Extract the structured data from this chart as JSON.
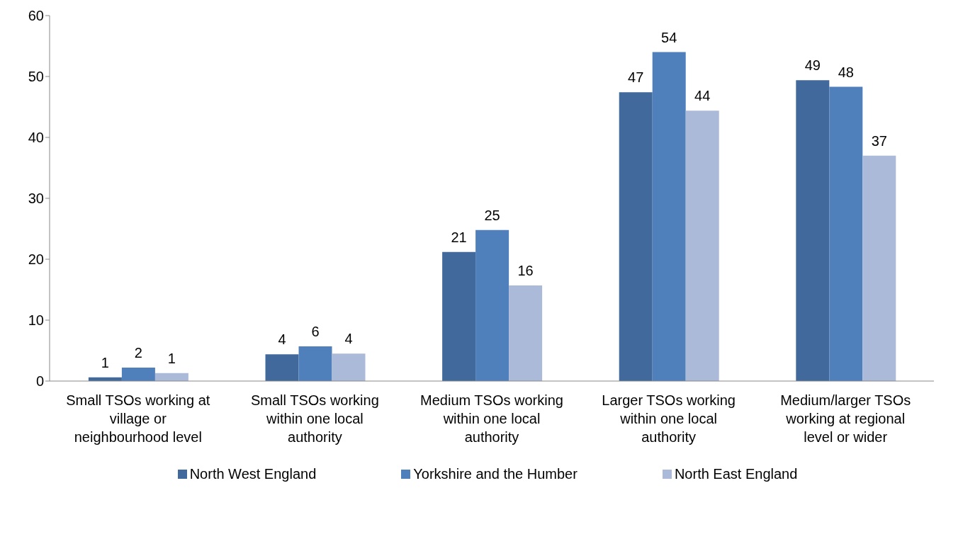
{
  "chart_data": {
    "type": "bar",
    "categories": [
      "Small TSOs working at village or neighbourhood level",
      "Small TSOs working within one local authority",
      "Medium TSOs working within one local authority",
      "Larger TSOs working within one local authority",
      "Medium/larger TSOs working at regional level or wider"
    ],
    "series": [
      {
        "name": "North West England",
        "color": "#41699b",
        "values": [
          0.6,
          4.4,
          21.2,
          47.4,
          49.4
        ],
        "value_labels": [
          "1",
          "4",
          "21",
          "47",
          "49"
        ]
      },
      {
        "name": "Yorkshire and the Humber",
        "color": "#4f80bc",
        "values": [
          2.2,
          5.7,
          24.8,
          54,
          48.3
        ],
        "value_labels": [
          "2",
          "6",
          "25",
          "54",
          "48"
        ]
      },
      {
        "name": "North East England",
        "color": "#abbad8",
        "values": [
          1.3,
          4.5,
          15.7,
          44.4,
          37
        ],
        "value_labels": [
          "1",
          "4",
          "16",
          "44",
          "37"
        ]
      }
    ],
    "ylim": [
      0,
      60
    ],
    "yticks": [
      0,
      10,
      20,
      30,
      40,
      50,
      60
    ],
    "legend": "bottom"
  }
}
